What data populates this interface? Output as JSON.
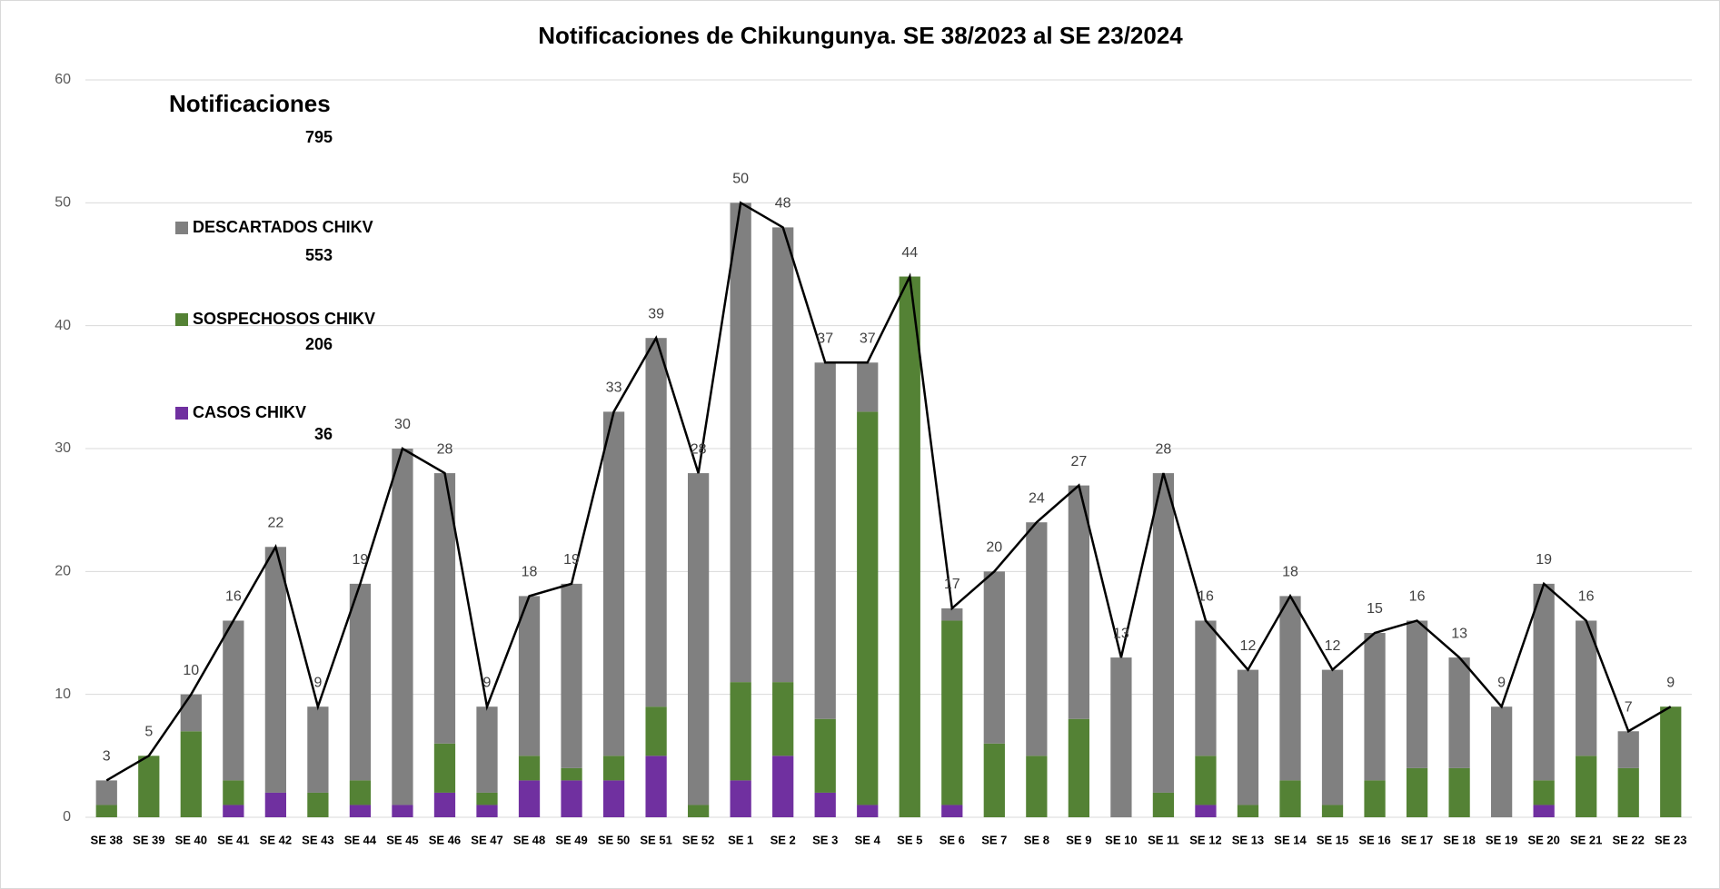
{
  "chart_data": {
    "type": "bar",
    "title": "Notificaciones de Chikungunya. SE 38/2023 al SE  23/2024",
    "categories": [
      "SE 38",
      "SE 39",
      "SE 40",
      "SE 41",
      "SE 42",
      "SE 43",
      "SE 44",
      "SE 45",
      "SE 46",
      "SE 47",
      "SE 48",
      "SE 49",
      "SE 50",
      "SE 51",
      "SE 52",
      "SE 1",
      "SE 2",
      "SE 3",
      "SE 4",
      "SE 5",
      "SE 6",
      "SE 7",
      "SE 8",
      "SE 9",
      "SE 10",
      "SE 11",
      "SE 12",
      "SE 13",
      "SE 14",
      "SE 15",
      "SE 16",
      "SE 17",
      "SE 18",
      "SE 19",
      "SE 20",
      "SE 21",
      "SE 22",
      "SE 23"
    ],
    "series": [
      {
        "name": "CASOS CHIKV",
        "color": "#7030a0",
        "total": 36,
        "values": [
          0,
          0,
          0,
          1,
          2,
          0,
          1,
          1,
          2,
          1,
          3,
          3,
          3,
          5,
          0,
          3,
          5,
          2,
          1,
          0,
          1,
          0,
          0,
          0,
          0,
          0,
          1,
          0,
          0,
          0,
          0,
          0,
          0,
          0,
          1,
          0,
          0,
          0
        ]
      },
      {
        "name": "SOSPECHOSOS CHIKV",
        "color": "#548235",
        "total": 206,
        "values": [
          1,
          5,
          7,
          2,
          0,
          2,
          2,
          0,
          4,
          1,
          2,
          1,
          2,
          4,
          1,
          8,
          6,
          6,
          32,
          44,
          15,
          6,
          5,
          8,
          0,
          2,
          4,
          1,
          3,
          1,
          3,
          4,
          4,
          0,
          2,
          5,
          4,
          9
        ]
      },
      {
        "name": "DESCARTADOS CHIKV",
        "color": "#808080",
        "total": 553,
        "values": [
          2,
          0,
          3,
          13,
          20,
          7,
          16,
          29,
          22,
          7,
          13,
          15,
          28,
          30,
          27,
          39,
          37,
          29,
          4,
          0,
          1,
          14,
          19,
          19,
          13,
          26,
          11,
          11,
          15,
          11,
          12,
          12,
          9,
          9,
          16,
          11,
          3,
          0
        ]
      }
    ],
    "line": {
      "color": "#000000",
      "values": [
        3,
        5,
        10,
        16,
        22,
        9,
        19,
        30,
        28,
        9,
        18,
        19,
        33,
        39,
        28,
        50,
        48,
        37,
        37,
        44,
        17,
        20,
        24,
        27,
        13,
        28,
        16,
        12,
        18,
        12,
        15,
        16,
        13,
        9,
        19,
        16,
        7,
        9
      ]
    },
    "summary": {
      "label": "Notificaciones",
      "total": 795
    },
    "ylim": [
      0,
      60
    ],
    "yticks": [
      0,
      10,
      20,
      30,
      40,
      50,
      60
    ],
    "grid": true
  }
}
